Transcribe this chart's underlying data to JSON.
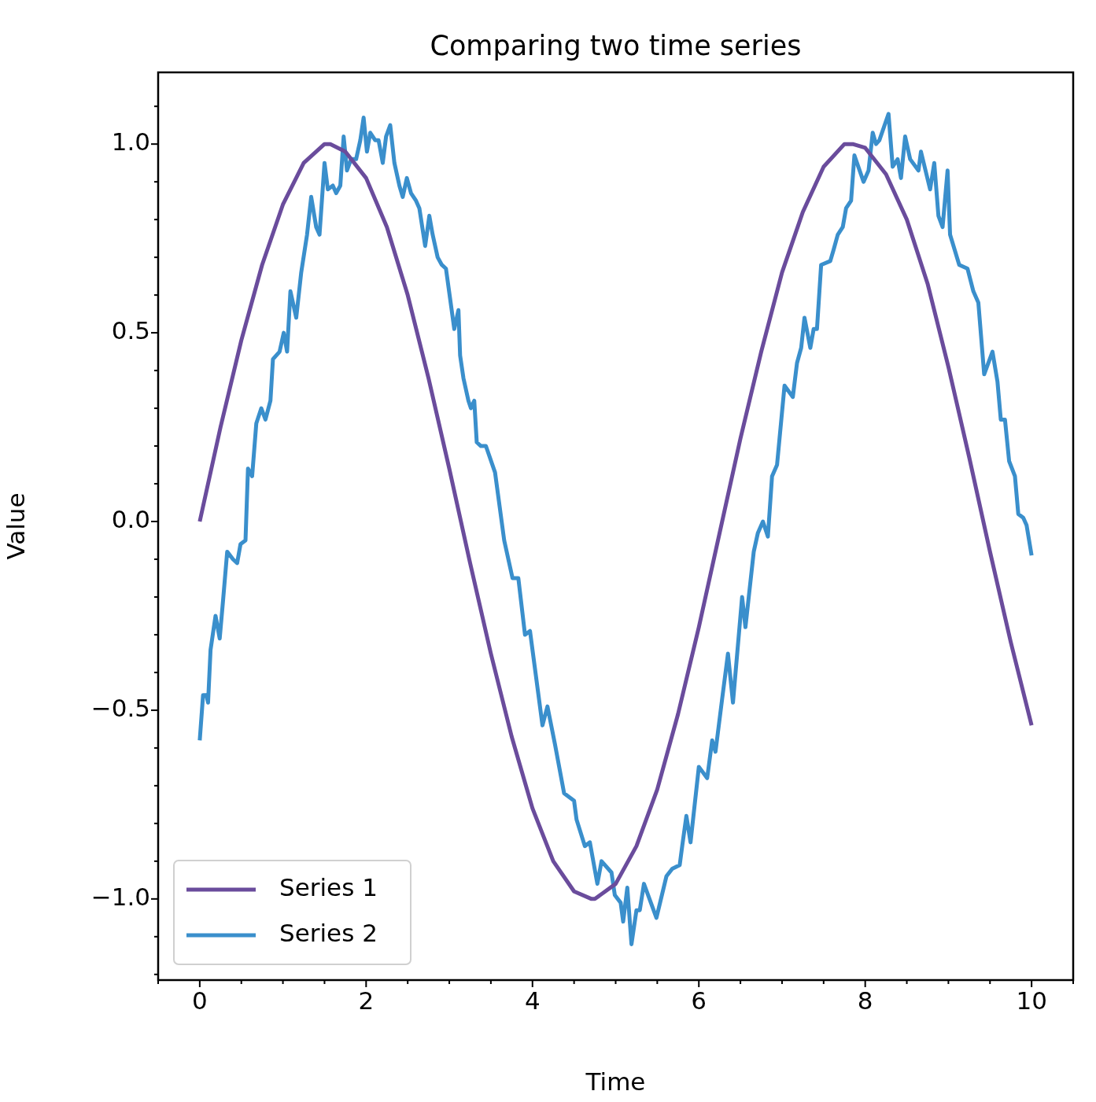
{
  "chart_data": {
    "type": "line",
    "title": "Comparing two time series",
    "xlabel": "Time",
    "ylabel": "Value",
    "xlim": [
      -0.5,
      10.5
    ],
    "xticks": [
      {
        "value": -0.5,
        "label": null
      },
      0,
      {
        "value": 0.5,
        "label": null
      },
      {
        "value": 1,
        "label": null
      },
      {
        "value": 1.5,
        "label": null
      },
      2,
      {
        "value": 2.5,
        "label": null
      },
      {
        "value": 3,
        "label": null
      },
      {
        "value": 3.5,
        "label": null
      },
      4,
      {
        "value": 4.5,
        "label": null
      },
      {
        "value": 5,
        "label": null
      },
      {
        "value": 5.5,
        "label": null
      },
      6,
      {
        "value": 6.5,
        "label": null
      },
      {
        "value": 7,
        "label": null
      },
      {
        "value": 7.5,
        "label": null
      },
      8,
      {
        "value": 8.5,
        "label": null
      },
      {
        "value": 9,
        "label": null
      },
      {
        "value": 9.5,
        "label": null
      },
      10,
      {
        "value": 10.5,
        "label": null
      }
    ],
    "ylim": [
      -1.215,
      1.19
    ],
    "yticks": [
      {
        "value": -1.2,
        "label": null
      },
      {
        "value": -1.1,
        "label": null
      },
      {
        "value": -1,
        "label": "−1.0"
      },
      {
        "value": -0.9,
        "label": null
      },
      {
        "value": -0.8,
        "label": null
      },
      {
        "value": -0.7,
        "label": null
      },
      {
        "value": -0.6,
        "label": null
      },
      {
        "value": -0.5,
        "label": "−0.5"
      },
      {
        "value": -0.4,
        "label": null
      },
      {
        "value": -0.3,
        "label": null
      },
      {
        "value": -0.2,
        "label": null
      },
      {
        "value": -0.1,
        "label": null
      },
      {
        "value": 0,
        "label": "0.0"
      },
      {
        "value": 0.1,
        "label": null
      },
      {
        "value": 0.2,
        "label": null
      },
      {
        "value": 0.3,
        "label": null
      },
      {
        "value": 0.4,
        "label": null
      },
      {
        "value": 0.5,
        "label": "0.5"
      },
      {
        "value": 0.6,
        "label": null
      },
      {
        "value": 0.7,
        "label": null
      },
      {
        "value": 0.8,
        "label": null
      },
      {
        "value": 0.9,
        "label": null
      },
      {
        "value": 1,
        "label": "1.0"
      },
      {
        "value": 1.1,
        "label": null
      }
    ],
    "grid": false,
    "legend": "bottom left",
    "marker": "none",
    "line_style": "solid",
    "series": [
      {
        "name": "Series 1",
        "color": "#6a4c9c",
        "x": [
          0,
          0.25,
          0.5,
          0.75,
          1,
          1.25,
          1.5,
          1.57,
          1.75,
          2,
          2.25,
          2.5,
          2.75,
          3,
          3.25,
          3.5,
          3.75,
          4,
          4.25,
          4.5,
          4.71,
          4.75,
          5,
          5.25,
          5.5,
          5.75,
          6,
          6.25,
          6.5,
          6.75,
          7,
          7.25,
          7.5,
          7.75,
          7.85,
          8,
          8.25,
          8.5,
          8.75,
          9,
          9.25,
          9.5,
          9.75,
          10
        ],
        "values": [
          0,
          0.25,
          0.48,
          0.68,
          0.84,
          0.95,
          1,
          1,
          0.98,
          0.91,
          0.78,
          0.6,
          0.38,
          0.14,
          -0.11,
          -0.35,
          -0.57,
          -0.76,
          -0.9,
          -0.98,
          -1,
          -1,
          -0.96,
          -0.86,
          -0.71,
          -0.51,
          -0.28,
          -0.03,
          0.22,
          0.45,
          0.66,
          0.82,
          0.94,
          1,
          1,
          0.99,
          0.92,
          0.8,
          0.63,
          0.41,
          0.17,
          -0.08,
          -0.32,
          -0.54
        ]
      },
      {
        "name": "Series 2",
        "color": "#3a8fcc",
        "x": [
          0,
          0.04,
          0.08,
          0.1,
          0.13,
          0.19,
          0.24,
          0.28,
          0.33,
          0.4,
          0.45,
          0.49,
          0.55,
          0.58,
          0.63,
          0.68,
          0.74,
          0.79,
          0.85,
          0.88,
          0.96,
          1.01,
          1.05,
          1.09,
          1.16,
          1.22,
          1.29,
          1.34,
          1.4,
          1.44,
          1.5,
          1.54,
          1.6,
          1.64,
          1.69,
          1.73,
          1.77,
          1.82,
          1.88,
          1.93,
          1.97,
          2.01,
          2.05,
          2.11,
          2.15,
          2.2,
          2.24,
          2.29,
          2.34,
          2.4,
          2.44,
          2.49,
          2.54,
          2.6,
          2.64,
          2.71,
          2.76,
          2.8,
          2.86,
          2.91,
          2.96,
          3.01,
          3.06,
          3.11,
          3.13,
          3.17,
          3.23,
          3.26,
          3.3,
          3.33,
          3.38,
          3.44,
          3.55,
          3.66,
          3.76,
          3.83,
          3.91,
          3.97,
          4.12,
          4.18,
          4.27,
          4.38,
          4.5,
          4.53,
          4.63,
          4.69,
          4.78,
          4.83,
          4.95,
          4.99,
          5.06,
          5.09,
          5.14,
          5.19,
          5.25,
          5.29,
          5.34,
          5.49,
          5.61,
          5.68,
          5.77,
          5.8,
          5.85,
          5.9,
          6,
          6.1,
          6.16,
          6.2,
          6.28,
          6.35,
          6.41,
          6.52,
          6.56,
          6.66,
          6.71,
          6.77,
          6.83,
          6.88,
          6.94,
          7.03,
          7.13,
          7.18,
          7.23,
          7.27,
          7.34,
          7.38,
          7.42,
          7.47,
          7.58,
          7.62,
          7.67,
          7.73,
          7.77,
          7.83,
          7.87,
          7.98,
          8.04,
          8.09,
          8.13,
          8.17,
          8.28,
          8.33,
          8.39,
          8.43,
          8.48,
          8.54,
          8.64,
          8.67,
          8.78,
          8.83,
          8.88,
          8.93,
          8.99,
          9.02,
          9.13,
          9.23,
          9.3,
          9.36,
          9.43,
          9.53,
          9.59,
          9.63,
          9.68,
          9.73,
          9.8,
          9.84,
          9.9,
          9.94,
          10
        ],
        "values": [
          -0.58,
          -0.46,
          -0.46,
          -0.48,
          -0.34,
          -0.25,
          -0.31,
          -0.21,
          -0.08,
          -0.1,
          -0.11,
          -0.06,
          -0.05,
          0.14,
          0.12,
          0.26,
          0.3,
          0.27,
          0.32,
          0.43,
          0.45,
          0.5,
          0.45,
          0.61,
          0.54,
          0.66,
          0.76,
          0.86,
          0.78,
          0.76,
          0.95,
          0.88,
          0.89,
          0.87,
          0.89,
          1.02,
          0.93,
          0.96,
          0.96,
          1.01,
          1.07,
          0.98,
          1.03,
          1.01,
          1.01,
          0.95,
          1.02,
          1.05,
          0.95,
          0.89,
          0.86,
          0.91,
          0.87,
          0.85,
          0.83,
          0.73,
          0.81,
          0.76,
          0.7,
          0.68,
          0.67,
          0.59,
          0.51,
          0.56,
          0.44,
          0.38,
          0.32,
          0.3,
          0.32,
          0.21,
          0.2,
          0.2,
          0.13,
          -0.05,
          -0.15,
          -0.15,
          -0.3,
          -0.29,
          -0.54,
          -0.49,
          -0.59,
          -0.72,
          -0.74,
          -0.79,
          -0.86,
          -0.85,
          -0.96,
          -0.9,
          -0.93,
          -0.99,
          -1.01,
          -1.06,
          -0.97,
          -1.12,
          -1.03,
          -1.03,
          -0.96,
          -1.05,
          -0.94,
          -0.92,
          -0.91,
          -0.86,
          -0.78,
          -0.85,
          -0.65,
          -0.68,
          -0.58,
          -0.61,
          -0.47,
          -0.35,
          -0.48,
          -0.2,
          -0.28,
          -0.08,
          -0.03,
          0,
          -0.04,
          0.12,
          0.15,
          0.36,
          0.33,
          0.42,
          0.46,
          0.54,
          0.46,
          0.51,
          0.51,
          0.68,
          0.69,
          0.72,
          0.76,
          0.78,
          0.83,
          0.85,
          0.97,
          0.9,
          0.93,
          1.03,
          1,
          1.01,
          1.08,
          0.94,
          0.96,
          0.91,
          1.02,
          0.96,
          0.93,
          0.98,
          0.88,
          0.95,
          0.81,
          0.78,
          0.93,
          0.76,
          0.68,
          0.67,
          0.61,
          0.58,
          0.39,
          0.45,
          0.37,
          0.27,
          0.27,
          0.16,
          0.12,
          0.02,
          0.01,
          -0.01,
          -0.09
        ]
      }
    ]
  }
}
